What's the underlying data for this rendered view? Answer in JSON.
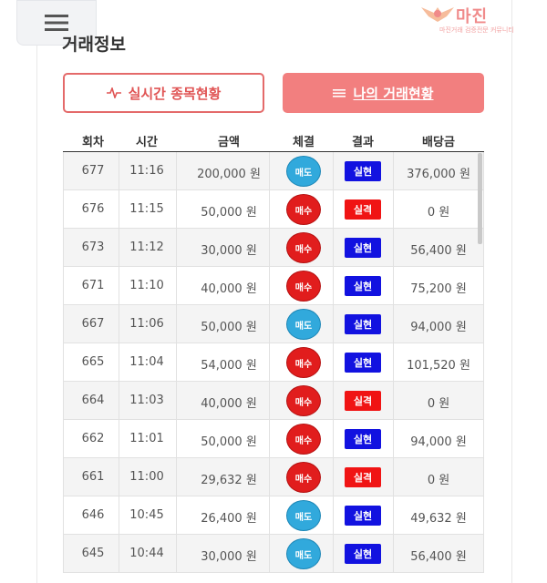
{
  "header": {
    "logo_text": "마진",
    "logo_tagline": "마진거래 검증전문 커뮤니티"
  },
  "section_title": "거래정보",
  "tabs": {
    "realtime_label": "실시간 종목현황",
    "mine_label": "나의 거래현황"
  },
  "table": {
    "headers": [
      "회차",
      "시간",
      "금액",
      "체결",
      "결과",
      "배당금"
    ],
    "rows": [
      {
        "round": "677",
        "time": "11:16",
        "amount": "200,000 원",
        "exec": "매도",
        "exec_type": "sell",
        "result": "실현",
        "result_type": "win",
        "payout": "376,000 원"
      },
      {
        "round": "676",
        "time": "11:15",
        "amount": "50,000 원",
        "exec": "매수",
        "exec_type": "buy",
        "result": "실격",
        "result_type": "lose",
        "payout": "0 원"
      },
      {
        "round": "673",
        "time": "11:12",
        "amount": "30,000 원",
        "exec": "매수",
        "exec_type": "buy",
        "result": "실현",
        "result_type": "win",
        "payout": "56,400 원"
      },
      {
        "round": "671",
        "time": "11:10",
        "amount": "40,000 원",
        "exec": "매수",
        "exec_type": "buy",
        "result": "실현",
        "result_type": "win",
        "payout": "75,200 원"
      },
      {
        "round": "667",
        "time": "11:06",
        "amount": "50,000 원",
        "exec": "매도",
        "exec_type": "sell",
        "result": "실현",
        "result_type": "win",
        "payout": "94,000 원"
      },
      {
        "round": "665",
        "time": "11:04",
        "amount": "54,000 원",
        "exec": "매수",
        "exec_type": "buy",
        "result": "실현",
        "result_type": "win",
        "payout": "101,520 원"
      },
      {
        "round": "664",
        "time": "11:03",
        "amount": "40,000 원",
        "exec": "매수",
        "exec_type": "buy",
        "result": "실격",
        "result_type": "lose",
        "payout": "0 원"
      },
      {
        "round": "662",
        "time": "11:01",
        "amount": "50,000 원",
        "exec": "매수",
        "exec_type": "buy",
        "result": "실현",
        "result_type": "win",
        "payout": "94,000 원"
      },
      {
        "round": "661",
        "time": "11:00",
        "amount": "29,632 원",
        "exec": "매수",
        "exec_type": "buy",
        "result": "실격",
        "result_type": "lose",
        "payout": "0 원"
      },
      {
        "round": "646",
        "time": "10:45",
        "amount": "26,400 원",
        "exec": "매도",
        "exec_type": "sell",
        "result": "실현",
        "result_type": "win",
        "payout": "49,632 원"
      },
      {
        "round": "645",
        "time": "10:44",
        "amount": "30,000 원",
        "exec": "매도",
        "exec_type": "sell",
        "result": "실현",
        "result_type": "win",
        "payout": "56,400 원"
      }
    ]
  },
  "colors": {
    "buy": "#e11d1d",
    "sell": "#31a9dc",
    "win": "#1212e0",
    "lose": "#f01414",
    "accent": "#f27f7f"
  },
  "icons": {
    "menu": "hamburger-menu-icon",
    "realtime": "pulse-wave-icon",
    "mine": "list-lines-icon"
  }
}
